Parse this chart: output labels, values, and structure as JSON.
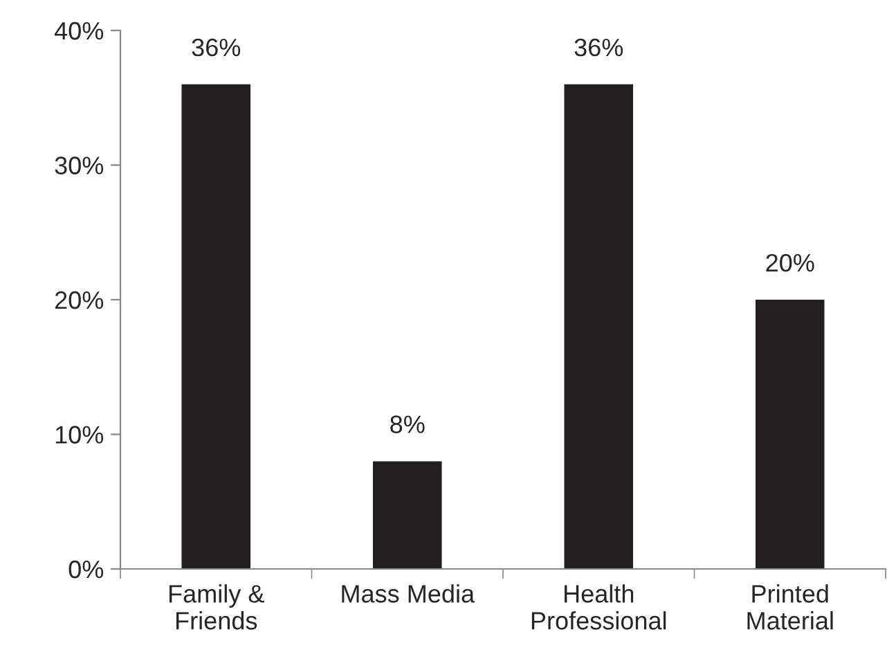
{
  "chart_data": {
    "type": "bar",
    "categories": [
      "Family &\nFriends",
      "Mass Media",
      "Health\nProfessional",
      "Printed\nMaterial"
    ],
    "values": [
      36,
      8,
      36,
      20
    ],
    "value_labels": [
      "36%",
      "8%",
      "36%",
      "20%"
    ],
    "color": "#231f20",
    "ylim": [
      0,
      40
    ],
    "yticks": [
      {
        "value": 0,
        "label": "0%"
      },
      {
        "value": 10,
        "label": "10%"
      },
      {
        "value": 20,
        "label": "20%"
      },
      {
        "value": 30,
        "label": "30%"
      },
      {
        "value": 40,
        "label": "40%"
      }
    ],
    "grid": false,
    "legend": false
  }
}
